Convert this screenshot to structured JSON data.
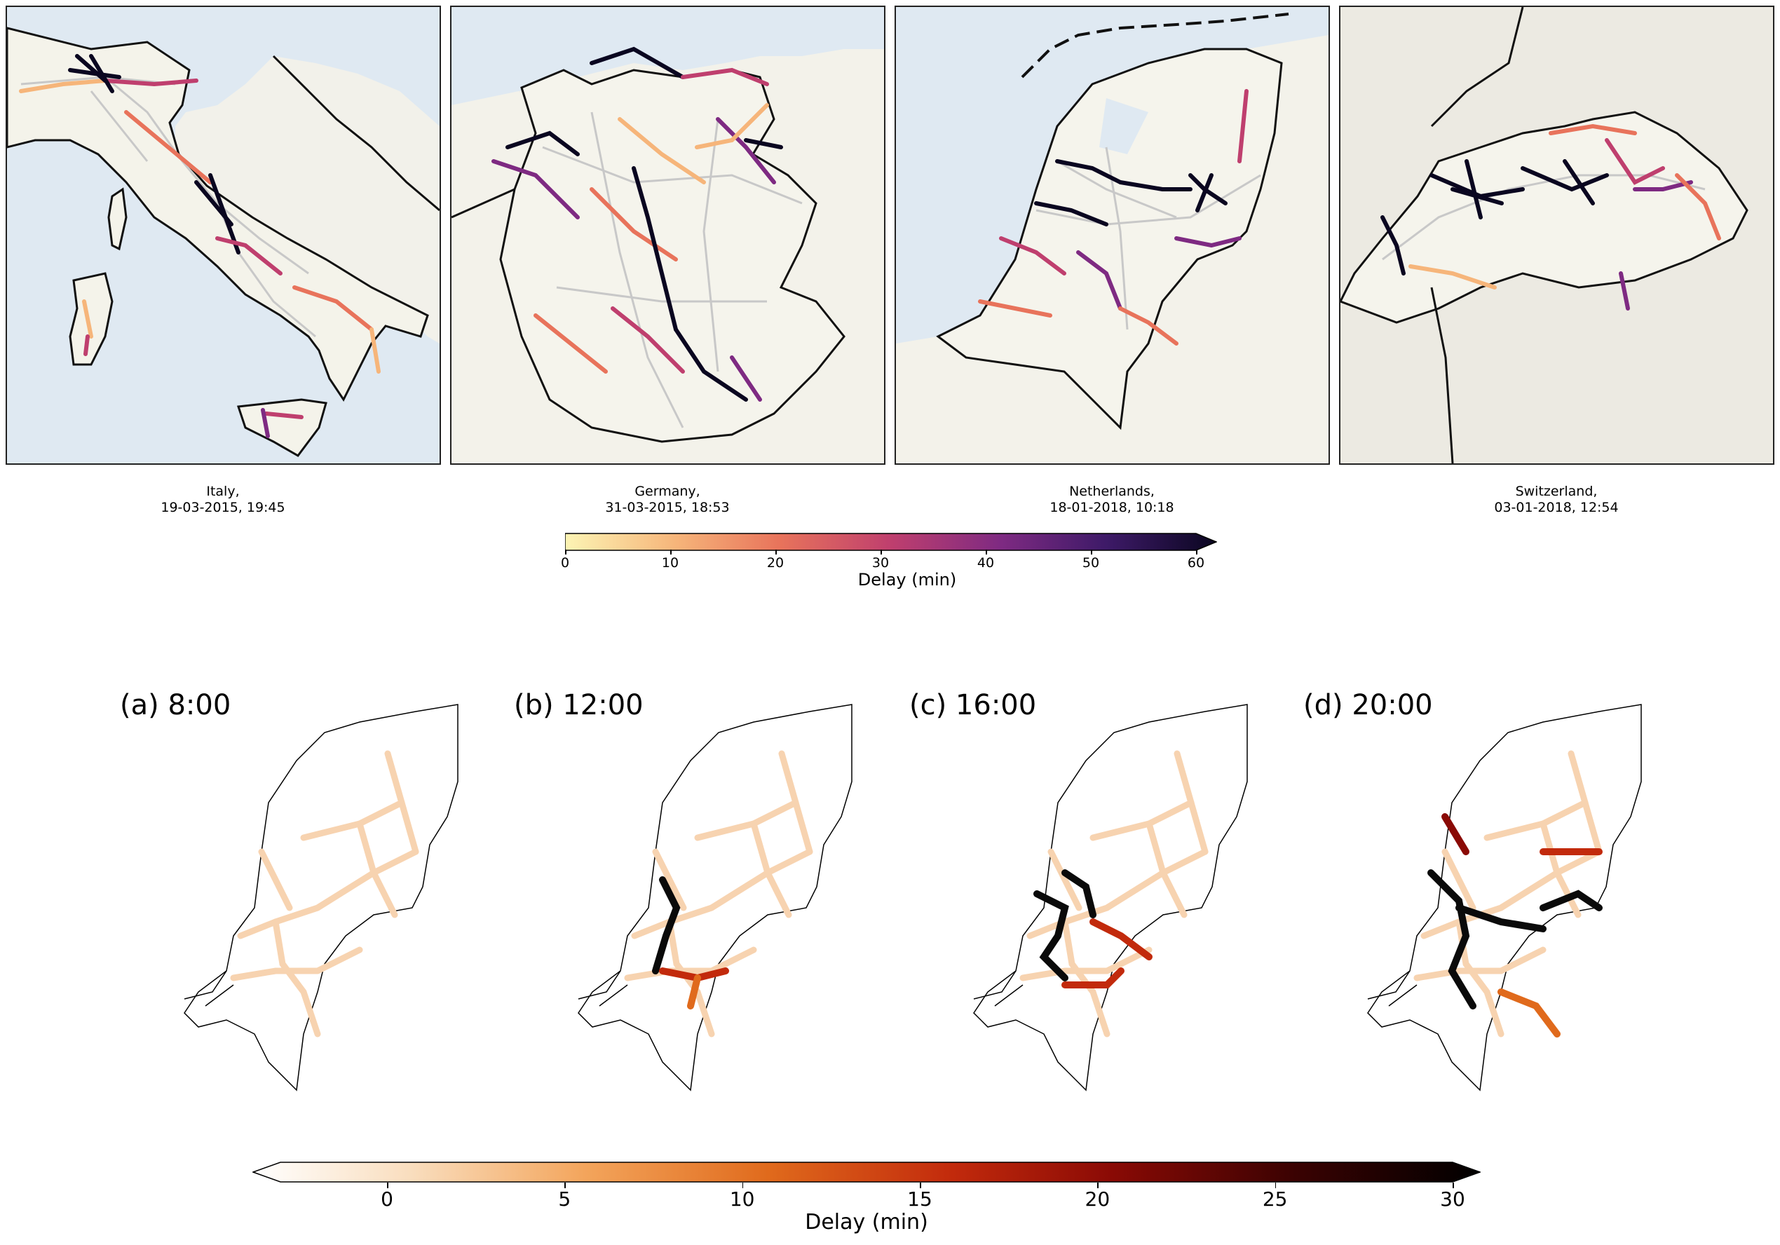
{
  "top_maps": [
    {
      "country": "Italy,",
      "datetime": "19-03-2015, 19:45"
    },
    {
      "country": "Germany,",
      "datetime": "31-03-2015, 18:53"
    },
    {
      "country": "Netherlands,",
      "datetime": "18-01-2018, 10:18"
    },
    {
      "country": "Switzerland,",
      "datetime": "03-01-2018, 12:54"
    }
  ],
  "top_colorbar": {
    "label": "Delay (min)",
    "ticks": [
      "0",
      "10",
      "20",
      "30",
      "40",
      "50",
      "60"
    ],
    "range": [
      0,
      60
    ],
    "extend": "max",
    "colormap": [
      "#fcf4b4",
      "#f6b57a",
      "#e8735b",
      "#bf3f6e",
      "#7e2a82",
      "#3e1a68",
      "#0a0620"
    ]
  },
  "bottom_maps": [
    {
      "label": "(a) 8:00"
    },
    {
      "label": "(b) 12:00"
    },
    {
      "label": "(c) 16:00"
    },
    {
      "label": "(d) 20:00"
    }
  ],
  "bottom_colorbar": {
    "label": "Delay (min)",
    "ticks": [
      "0",
      "5",
      "10",
      "15",
      "20",
      "25",
      "30"
    ],
    "range": [
      -3,
      30
    ],
    "extend": "both",
    "colormap": [
      "#ffffff",
      "#f9ddbd",
      "#f3a55c",
      "#e06a1c",
      "#c22a0c",
      "#8a0a05",
      "#3a0202",
      "#000000"
    ]
  },
  "colors": {
    "sea": "#dfe9f2",
    "land": "#f5f4ec",
    "border": "#111111",
    "rail_base": "#c8c8c8",
    "nl_low_delay": "#f7d3b0"
  }
}
